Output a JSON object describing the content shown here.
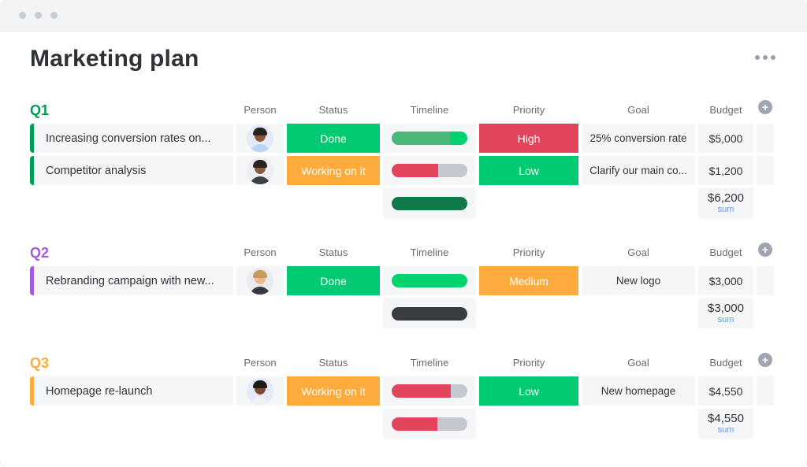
{
  "header": {
    "title": "Marketing plan"
  },
  "icons": {
    "plus": "+",
    "ellipsis": "more-options",
    "titlebar_dots": "window-dots"
  },
  "labels": {
    "sum": "sum"
  },
  "columns": [
    "Person",
    "Status",
    "Timeline",
    "Priority",
    "Goal",
    "Budget"
  ],
  "palette": {
    "done_green": "#00ca72",
    "working_orange": "#fdab3d",
    "high_red": "#e2445c",
    "track_gray": "#c4c7d0",
    "sum_blue": "#579bfc",
    "cell_bg": "#f5f6f8"
  },
  "groups": [
    {
      "title": "Q1",
      "color": "#009d54",
      "rows": [
        {
          "name": "Increasing conversion rates on...",
          "avatar": {
            "bg": "#e6e9f8",
            "skin": "#8a563a",
            "hair": "#26221f",
            "shirt": "#b9d4f0"
          },
          "status": {
            "label": "Done",
            "color": "#00ca72"
          },
          "timeline": {
            "track": "#c4c7d0",
            "segments": [
              {
                "color": "#4ab877",
                "pct": 77
              },
              {
                "color": "#00d26d",
                "pct": 23
              }
            ]
          },
          "priority": {
            "label": "High",
            "color": "#e2445c"
          },
          "goal": "25% conversion rate",
          "budget": "$5,000"
        },
        {
          "name": "Competitor analysis",
          "avatar": {
            "bg": "#eceef3",
            "skin": "#8a5a3f",
            "hair": "#2a2320",
            "shirt": "#3a4046"
          },
          "status": {
            "label": "Working on it",
            "color": "#fdab3d"
          },
          "timeline": {
            "track": "#c4c7d0",
            "segments": [
              {
                "color": "#e2445c",
                "pct": 61
              }
            ]
          },
          "priority": {
            "label": "Low",
            "color": "#00ca72"
          },
          "goal": "Clarify our main co...",
          "budget": "$1,200"
        }
      ],
      "sum": {
        "timeline": {
          "track": "#c4c7d0",
          "segments": [
            {
              "color": "#0e7a49",
              "pct": 100
            }
          ]
        },
        "budget": "$6,200"
      }
    },
    {
      "title": "Q2",
      "color": "#a25ddc",
      "rows": [
        {
          "name": "Rebranding campaign with new...",
          "avatar": {
            "bg": "#e9ebf1",
            "skin": "#eeb98e",
            "hair": "#c59a5d",
            "shirt": "#373b41"
          },
          "status": {
            "label": "Done",
            "color": "#00ca72"
          },
          "timeline": {
            "track": "#c4c7d0",
            "segments": [
              {
                "color": "#00d26d",
                "pct": 100
              }
            ]
          },
          "priority": {
            "label": "Medium",
            "color": "#fdab3d"
          },
          "goal": "New logo",
          "budget": "$3,000"
        }
      ],
      "sum": {
        "timeline": {
          "track": "#c4c7d0",
          "segments": [
            {
              "color": "#3a3d40",
              "pct": 100
            }
          ]
        },
        "budget": "$3,000"
      }
    },
    {
      "title": "Q3",
      "color": "#fdab3d",
      "rows": [
        {
          "name": "Homepage re-launch",
          "avatar": {
            "bg": "#e6e9f8",
            "skin": "#7c4b31",
            "hair": "#1d1a18",
            "shirt": "#eef0f3"
          },
          "status": {
            "label": "Working on it",
            "color": "#fdab3d"
          },
          "timeline": {
            "track": "#c4c7d0",
            "segments": [
              {
                "color": "#e2445c",
                "pct": 78
              }
            ]
          },
          "priority": {
            "label": "Low",
            "color": "#00ca72"
          },
          "goal": "New homepage",
          "budget": "$4,550"
        }
      ],
      "sum": {
        "timeline": {
          "track": "#c4c7d0",
          "segments": [
            {
              "color": "#e2445c",
              "pct": 60
            }
          ]
        },
        "budget": "$4,550"
      }
    }
  ]
}
